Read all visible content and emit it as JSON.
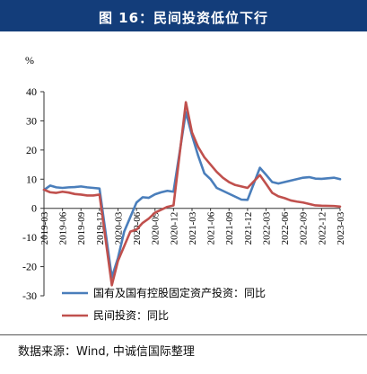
{
  "title": "图 16：民间投资低位下行",
  "source": "数据来源：Wind, 中诚信国际整理",
  "chart_data": {
    "type": "line",
    "unit_label": "%",
    "x": [
      "2019-03",
      "2019-04",
      "2019-05",
      "2019-06",
      "2019-07",
      "2019-08",
      "2019-09",
      "2019-10",
      "2019-11",
      "2019-12",
      "2020-02",
      "2020-03",
      "2020-04",
      "2020-05",
      "2020-06",
      "2020-07",
      "2020-08",
      "2020-09",
      "2020-10",
      "2020-11",
      "2020-12",
      "2021-02",
      "2021-03",
      "2021-04",
      "2021-05",
      "2021-06",
      "2021-07",
      "2021-08",
      "2021-09",
      "2021-10",
      "2021-11",
      "2021-12",
      "2022-02",
      "2022-03",
      "2022-04",
      "2022-05",
      "2022-06",
      "2022-07",
      "2022-08",
      "2022-09",
      "2022-10",
      "2022-11",
      "2022-12",
      "2023-02",
      "2023-03"
    ],
    "xtick_labels": [
      "2019-03",
      "2019-06",
      "2019-09",
      "2019-12",
      "2020-03",
      "2020-06",
      "2020-09",
      "2020-12",
      "2021-03",
      "2021-06",
      "2021-09",
      "2021-12",
      "2022-03",
      "2022-06",
      "2022-09",
      "2022-12",
      "2023-03"
    ],
    "ylim": [
      -30,
      40
    ],
    "yticks": [
      -30,
      -20,
      -10,
      0,
      10,
      20,
      30,
      40
    ],
    "legend_position": "bottom-left",
    "series": [
      {
        "name": "国有及国有控股固定资产投资：同比",
        "color": "#4a7ebb",
        "values": [
          6.3,
          7.8,
          7.2,
          7.0,
          7.2,
          7.3,
          7.5,
          7.2,
          7.0,
          6.8,
          -23.7,
          -17.0,
          -8.0,
          -3.0,
          2.0,
          3.8,
          3.6,
          4.8,
          5.5,
          6.0,
          5.7,
          33.0,
          25.0,
          18.0,
          12.0,
          10.0,
          7.0,
          6.0,
          5.0,
          4.0,
          3.0,
          2.9,
          13.9,
          11.5,
          9.0,
          8.5,
          9.0,
          9.5,
          10.0,
          10.5,
          10.7,
          10.2,
          10.1,
          10.5,
          10.0
        ]
      },
      {
        "name": "民间投资：同比",
        "color": "#c0504d",
        "values": [
          6.4,
          5.5,
          5.3,
          5.7,
          5.4,
          4.9,
          4.7,
          4.4,
          4.4,
          4.7,
          -26.4,
          -18.0,
          -13.0,
          -8.0,
          -7.3,
          -5.0,
          -3.5,
          -1.5,
          -0.5,
          0.5,
          1.0,
          36.4,
          26.0,
          21.0,
          17.5,
          15.0,
          12.5,
          10.5,
          9.0,
          8.0,
          7.5,
          7.0,
          11.4,
          8.4,
          5.3,
          4.1,
          3.5,
          2.7,
          2.3,
          2.0,
          1.5,
          1.0,
          0.9,
          0.8,
          0.6
        ]
      }
    ]
  }
}
